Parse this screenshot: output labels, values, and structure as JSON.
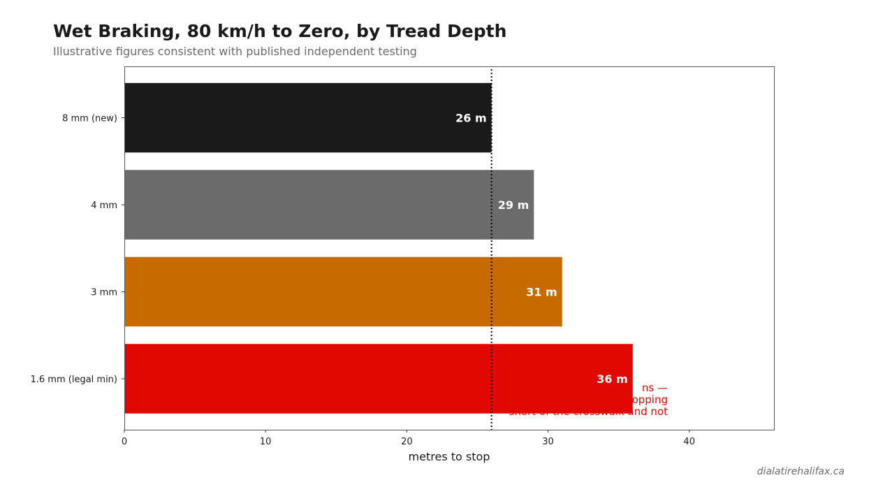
{
  "title": "Wet Braking, 80 km/h to Zero, by Tread Depth",
  "subtitle": "Illustrative figures consistent with published independent testing",
  "watermark": "dialatirehalifax.ca",
  "chart_data": {
    "type": "bar",
    "orientation": "horizontal",
    "title": "Wet Braking, 80 km/h to Zero, by Tread Depth",
    "subtitle": "Illustrative figures consistent with published independent testing",
    "xlabel": "metres to stop",
    "ylabel": "",
    "categories": [
      "8 mm (new)",
      "4 mm",
      "3 mm",
      "1.6 mm (legal min)"
    ],
    "values": [
      26,
      29,
      31,
      36
    ],
    "data_labels": [
      "26 m",
      "29 m",
      "31 m",
      "36 m"
    ],
    "colors": [
      "#1a1a1a",
      "#6b6b6b",
      "#c76a00",
      "#e00800"
    ],
    "xlim": [
      0,
      46
    ],
    "xticks": [
      0,
      10,
      20,
      30,
      40
    ],
    "grid": false,
    "reference_line": {
      "x": 26,
      "style": "dotted",
      "color": "#000000"
    },
    "annotation": {
      "lines": [
        "ns —",
        "stopping",
        "short of the crosswalk and not"
      ],
      "color": "#e00800"
    }
  }
}
